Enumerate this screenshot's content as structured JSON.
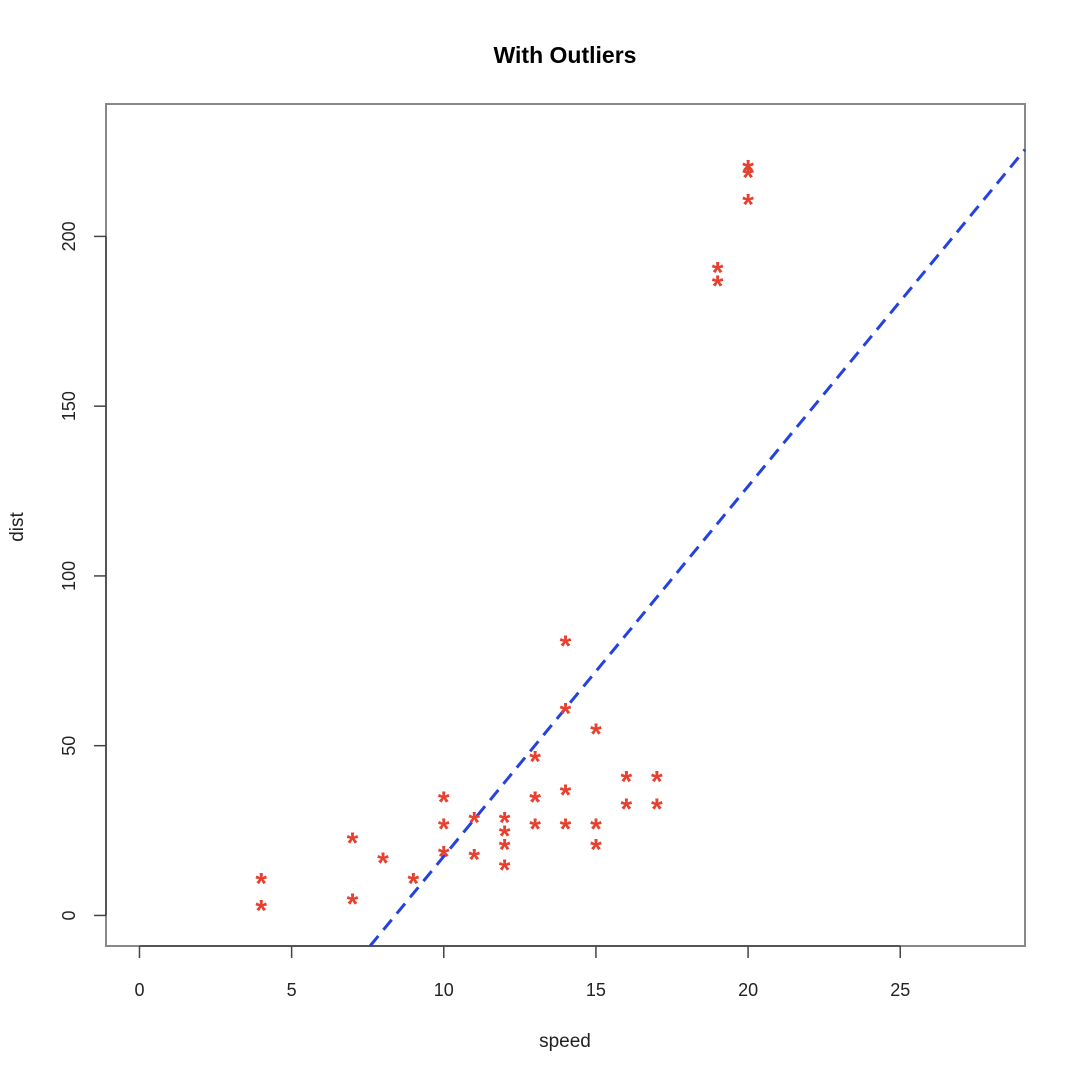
{
  "chart_data": {
    "type": "scatter",
    "title": "With Outliers",
    "xlabel": "speed",
    "ylabel": "dist",
    "xlim": [
      -1.1,
      29.1
    ],
    "ylim": [
      -9,
      239
    ],
    "xticks": [
      0,
      5,
      10,
      15,
      20,
      25
    ],
    "yticks": [
      0,
      50,
      100,
      150,
      200
    ],
    "grid": false,
    "marker": "*",
    "point_color": "#e8402f",
    "points": [
      [
        4,
        2
      ],
      [
        4,
        10
      ],
      [
        7,
        4
      ],
      [
        7,
        22
      ],
      [
        8,
        16
      ],
      [
        9,
        10
      ],
      [
        10,
        18
      ],
      [
        10,
        26
      ],
      [
        10,
        34
      ],
      [
        11,
        17
      ],
      [
        11,
        28
      ],
      [
        12,
        14
      ],
      [
        12,
        20
      ],
      [
        12,
        24
      ],
      [
        12,
        28
      ],
      [
        13,
        26
      ],
      [
        13,
        34
      ],
      [
        13,
        34
      ],
      [
        13,
        46
      ],
      [
        14,
        26
      ],
      [
        14,
        36
      ],
      [
        14,
        60
      ],
      [
        14,
        80
      ],
      [
        15,
        20
      ],
      [
        15,
        26
      ],
      [
        15,
        54
      ],
      [
        16,
        32
      ],
      [
        16,
        40
      ],
      [
        17,
        32
      ],
      [
        17,
        40
      ],
      [
        19,
        186
      ],
      [
        19,
        190
      ],
      [
        20,
        210
      ],
      [
        20,
        218
      ],
      [
        20,
        220
      ]
    ],
    "fit_line": {
      "style": "dashed",
      "color": "#2442e0",
      "slope": 10.9,
      "intercept": -91.6
    }
  }
}
